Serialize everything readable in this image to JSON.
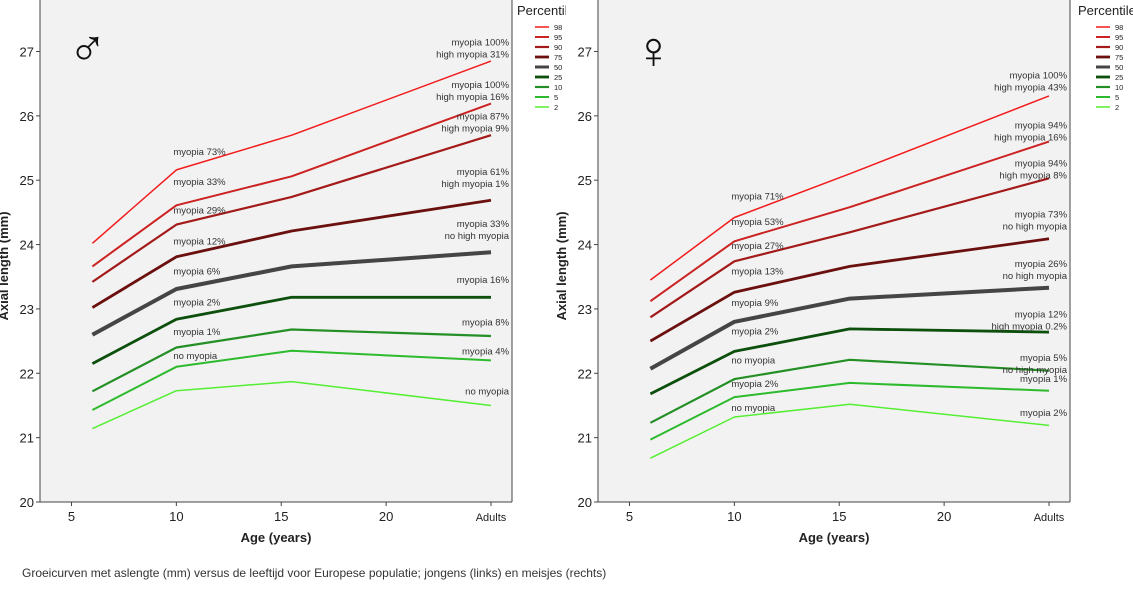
{
  "caption": "Groeicurven met aslengte (mm) versus de leeftijd voor Europese populatie; jongens (links) en meisjes (rechts)",
  "chart_data": [
    {
      "type": "line",
      "panel": "boys",
      "sex_symbol": "♂",
      "xlabel": "Age (years)",
      "ylabel": "Axial length (mm)",
      "xlim": [
        3.5,
        26
      ],
      "ylim": [
        20,
        27.8
      ],
      "x_ticks": [
        {
          "value": 5,
          "label": "5"
        },
        {
          "value": 10,
          "label": "10"
        },
        {
          "value": 15,
          "label": "15"
        },
        {
          "value": 20,
          "label": "20"
        },
        {
          "value": 25,
          "label": "Adults"
        }
      ],
      "y_ticks": [
        20,
        21,
        22,
        23,
        24,
        25,
        26,
        27
      ],
      "x": [
        6,
        10,
        15.5,
        25
      ],
      "legend_title": "Percentile",
      "series": [
        {
          "name": "98",
          "color": "#f21b1b",
          "width": 1.5,
          "values": [
            24.02,
            25.16,
            25.7,
            26.85
          ]
        },
        {
          "name": "95",
          "color": "#cc2222",
          "width": 2,
          "values": [
            23.66,
            24.61,
            25.06,
            26.19
          ]
        },
        {
          "name": "90",
          "color": "#a41a1a",
          "width": 2.2,
          "values": [
            23.42,
            24.31,
            24.74,
            25.7
          ]
        },
        {
          "name": "75",
          "color": "#6b0f0f",
          "width": 2.8,
          "values": [
            23.02,
            23.81,
            24.21,
            24.69
          ]
        },
        {
          "name": "50",
          "color": "#454545",
          "width": 4,
          "values": [
            22.6,
            23.31,
            23.66,
            23.88
          ]
        },
        {
          "name": "25",
          "color": "#0d4f0d",
          "width": 2.8,
          "values": [
            22.15,
            22.84,
            23.18,
            23.18
          ]
        },
        {
          "name": "10",
          "color": "#248f24",
          "width": 2.2,
          "values": [
            21.72,
            22.4,
            22.68,
            22.58
          ]
        },
        {
          "name": "5",
          "color": "#2dbb2d",
          "width": 2,
          "values": [
            21.43,
            22.1,
            22.35,
            22.2
          ]
        },
        {
          "name": "2",
          "color": "#55ee33",
          "width": 1.5,
          "values": [
            21.14,
            21.73,
            21.87,
            21.5
          ]
        }
      ],
      "annotations_age10": [
        {
          "text": "myopia 73%",
          "y": 25.44
        },
        {
          "text": "myopia 33%",
          "y": 24.97
        },
        {
          "text": "myopia 29%",
          "y": 24.53
        },
        {
          "text": "myopia 12%",
          "y": 24.05
        },
        {
          "text": "myopia 6%",
          "y": 23.58
        },
        {
          "text": "myopia 2%",
          "y": 23.1
        },
        {
          "text": "myopia 1%",
          "y": 22.64
        },
        {
          "text": "no myopia",
          "y": 22.27
        }
      ],
      "annotations_adult": [
        {
          "lines": [
            "myopia 100%",
            "high myopia 31%"
          ],
          "y": 27.14
        },
        {
          "lines": [
            "myopia 100%",
            "high myopia 16%"
          ],
          "y": 26.48
        },
        {
          "lines": [
            "myopia 87%",
            "high myopia 9%"
          ],
          "y": 25.99
        },
        {
          "lines": [
            "myopia 61%",
            "high myopia 1%"
          ],
          "y": 25.13
        },
        {
          "lines": [
            "myopia 33%",
            "no high myopia"
          ],
          "y": 24.32
        },
        {
          "lines": [
            "myopia 16%"
          ],
          "y": 23.45
        },
        {
          "lines": [
            "myopia 8%"
          ],
          "y": 22.79
        },
        {
          "lines": [
            "myopia 4%"
          ],
          "y": 22.34
        },
        {
          "lines": [
            "no myopia"
          ],
          "y": 21.72
        }
      ]
    },
    {
      "type": "line",
      "panel": "girls",
      "sex_symbol": "♀",
      "xlabel": "Age (years)",
      "ylabel": "Axial length (mm)",
      "xlim": [
        3.5,
        26
      ],
      "ylim": [
        20,
        27.8
      ],
      "x_ticks": [
        {
          "value": 5,
          "label": "5"
        },
        {
          "value": 10,
          "label": "10"
        },
        {
          "value": 15,
          "label": "15"
        },
        {
          "value": 20,
          "label": "20"
        },
        {
          "value": 25,
          "label": "Adults"
        }
      ],
      "y_ticks": [
        20,
        21,
        22,
        23,
        24,
        25,
        26,
        27
      ],
      "x": [
        6,
        10,
        15.5,
        25
      ],
      "legend_title": "Percentile",
      "series": [
        {
          "name": "98",
          "color": "#f21b1b",
          "width": 1.5,
          "values": [
            23.45,
            24.42,
            25.1,
            26.31
          ]
        },
        {
          "name": "95",
          "color": "#cc2222",
          "width": 2,
          "values": [
            23.12,
            24.05,
            24.58,
            25.6
          ]
        },
        {
          "name": "90",
          "color": "#a41a1a",
          "width": 2.2,
          "values": [
            22.87,
            23.74,
            24.19,
            25.03
          ]
        },
        {
          "name": "75",
          "color": "#6b0f0f",
          "width": 2.8,
          "values": [
            22.5,
            23.26,
            23.66,
            24.09
          ]
        },
        {
          "name": "50",
          "color": "#454545",
          "width": 4,
          "values": [
            22.07,
            22.8,
            23.16,
            23.33
          ]
        },
        {
          "name": "25",
          "color": "#0d4f0d",
          "width": 2.8,
          "values": [
            21.68,
            22.34,
            22.69,
            22.64
          ]
        },
        {
          "name": "10",
          "color": "#248f24",
          "width": 2.2,
          "values": [
            21.23,
            21.91,
            22.21,
            22.04
          ]
        },
        {
          "name": "5",
          "color": "#2dbb2d",
          "width": 2,
          "values": [
            20.97,
            21.63,
            21.85,
            21.73
          ]
        },
        {
          "name": "2",
          "color": "#55ee33",
          "width": 1.5,
          "values": [
            20.68,
            21.32,
            21.52,
            21.19
          ]
        }
      ],
      "annotations_age10": [
        {
          "text": "myopia 71%",
          "y": 24.75
        },
        {
          "text": "myopia 53%",
          "y": 24.35
        },
        {
          "text": "myopia 27%",
          "y": 23.98
        },
        {
          "text": "myopia 13%",
          "y": 23.58
        },
        {
          "text": "myopia 9%",
          "y": 23.09
        },
        {
          "text": "myopia 2%",
          "y": 22.65
        },
        {
          "text": "no myopia",
          "y": 22.2
        },
        {
          "text": "myopia 2%",
          "y": 21.83
        },
        {
          "text": "no myopia",
          "y": 21.46
        }
      ],
      "annotations_adult": [
        {
          "lines": [
            "myopia 100%",
            "high myopia 43%"
          ],
          "y": 26.63
        },
        {
          "lines": [
            "myopia 94%",
            "high myopia 16%"
          ],
          "y": 25.85
        },
        {
          "lines": [
            "myopia 94%",
            "high myopia 8%"
          ],
          "y": 25.26
        },
        {
          "lines": [
            "myopia 73%",
            "no high myopia"
          ],
          "y": 24.47
        },
        {
          "lines": [
            "myopia 26%",
            "no high myopia"
          ],
          "y": 23.7
        },
        {
          "lines": [
            "myopia 12%",
            "high myopia 0.2%"
          ],
          "y": 22.91
        },
        {
          "lines": [
            "myopia 5%",
            "no high myopia"
          ],
          "y": 22.24
        },
        {
          "lines": [
            "myopia 1%"
          ],
          "y": 21.91
        },
        {
          "lines": [
            "myopia 2%"
          ],
          "y": 21.38
        }
      ]
    }
  ]
}
